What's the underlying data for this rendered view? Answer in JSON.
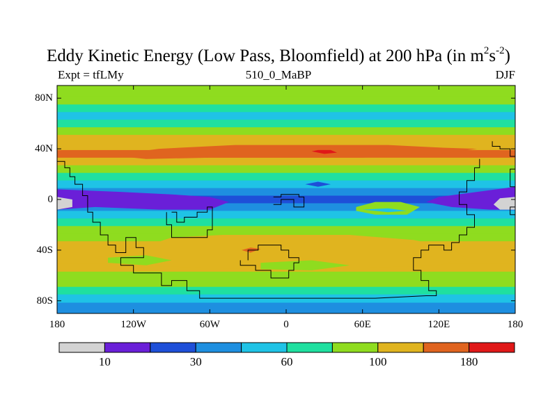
{
  "chart_data": {
    "type": "heatmap",
    "title_main": "Eddy Kinetic Energy (Low Pass, Bloomfield) at 200 hPa (in m",
    "title_sup1": "2",
    "title_s": "s",
    "title_sup2": "-2",
    "title_close": ")",
    "subtitle_left": "Expt = tfLMy",
    "subtitle_center": "510_0_MaBP",
    "subtitle_right": "DJF",
    "x_ticks": [
      "180",
      "120W",
      "60W",
      "0",
      "60E",
      "120E",
      "180"
    ],
    "x_tick_values": [
      -180,
      -120,
      -60,
      0,
      60,
      120,
      180
    ],
    "y_ticks": [
      "80N",
      "40N",
      "0",
      "40S",
      "80S"
    ],
    "y_tick_values": [
      80,
      40,
      0,
      -40,
      -80
    ],
    "xlim": [
      -180,
      180
    ],
    "ylim": [
      -90,
      90
    ],
    "colorbar": {
      "colors": [
        "#d3d3d3",
        "#6a1fd8",
        "#1e4fd8",
        "#1e8fe0",
        "#1fc3e6",
        "#1fe0a0",
        "#8fdc1f",
        "#e0b41f",
        "#e0641f",
        "#e01818"
      ],
      "labels": [
        "10",
        "30",
        "60",
        "100",
        "180"
      ],
      "label_boundaries": [
        1,
        3,
        5,
        7,
        9
      ]
    },
    "bands": [
      {
        "lat": 85,
        "level": 6
      },
      {
        "lat": 78,
        "level": 6
      },
      {
        "lat": 72,
        "level": 5
      },
      {
        "lat": 66,
        "level": 4
      },
      {
        "lat": 60,
        "level": 5
      },
      {
        "lat": 54,
        "level": 6
      },
      {
        "lat": 48,
        "level": 7
      },
      {
        "lat": 42,
        "level": 7
      },
      {
        "lat": 36,
        "level": 8
      },
      {
        "lat": 30,
        "level": 7
      },
      {
        "lat": 24,
        "level": 6
      },
      {
        "lat": 18,
        "level": 5
      },
      {
        "lat": 12,
        "level": 4
      },
      {
        "lat": 6,
        "level": 3
      },
      {
        "lat": 0,
        "level": 2
      },
      {
        "lat": -6,
        "level": 3
      },
      {
        "lat": -12,
        "level": 4
      },
      {
        "lat": -18,
        "level": 5
      },
      {
        "lat": -24,
        "level": 6
      },
      {
        "lat": -30,
        "level": 6
      },
      {
        "lat": -36,
        "level": 7
      },
      {
        "lat": -42,
        "level": 7
      },
      {
        "lat": -48,
        "level": 7
      },
      {
        "lat": -54,
        "level": 7
      },
      {
        "lat": -60,
        "level": 6
      },
      {
        "lat": -66,
        "level": 6
      },
      {
        "lat": -72,
        "level": 5
      },
      {
        "lat": -78,
        "level": 4
      },
      {
        "lat": -85,
        "level": 3
      }
    ],
    "features": [
      {
        "level": 8,
        "poly": [
          [
            -130,
            36
          ],
          [
            -100,
            40
          ],
          [
            -40,
            43
          ],
          [
            20,
            43
          ],
          [
            80,
            43
          ],
          [
            120,
            41
          ],
          [
            150,
            40
          ],
          [
            120,
            36
          ],
          [
            60,
            33
          ],
          [
            0,
            33
          ],
          [
            -60,
            33
          ],
          [
            -110,
            32
          ],
          [
            -130,
            34
          ]
        ]
      },
      {
        "level": 9,
        "poly": [
          [
            20,
            38
          ],
          [
            30,
            36
          ],
          [
            40,
            37
          ],
          [
            35,
            39
          ],
          [
            25,
            39
          ]
        ]
      },
      {
        "level": 1,
        "poly": [
          [
            -180,
            8
          ],
          [
            -130,
            6
          ],
          [
            -90,
            4
          ],
          [
            -60,
            2
          ],
          [
            -45,
            -2
          ],
          [
            -60,
            -8
          ],
          [
            -100,
            -8
          ],
          [
            -150,
            -6
          ],
          [
            -180,
            -8
          ]
        ]
      },
      {
        "level": 1,
        "poly": [
          [
            180,
            10
          ],
          [
            150,
            6
          ],
          [
            120,
            2
          ],
          [
            110,
            -2
          ],
          [
            130,
            -6
          ],
          [
            160,
            -8
          ],
          [
            180,
            -8
          ]
        ]
      },
      {
        "level": 0,
        "poly": [
          [
            -180,
            2
          ],
          [
            -168,
            0
          ],
          [
            -168,
            -6
          ],
          [
            -180,
            -8
          ]
        ]
      },
      {
        "level": 0,
        "poly": [
          [
            180,
            2
          ],
          [
            168,
            1
          ],
          [
            163,
            -4
          ],
          [
            168,
            -8
          ],
          [
            180,
            -8
          ]
        ]
      },
      {
        "level": 2,
        "poly": [
          [
            15,
            12
          ],
          [
            25,
            14
          ],
          [
            35,
            12
          ],
          [
            25,
            10
          ]
        ]
      },
      {
        "level": 6,
        "poly": [
          [
            55,
            -6
          ],
          [
            70,
            -2
          ],
          [
            90,
            -2
          ],
          [
            105,
            -6
          ],
          [
            95,
            -12
          ],
          [
            70,
            -12
          ],
          [
            55,
            -9
          ]
        ]
      },
      {
        "level": 4,
        "poly": [
          [
            60,
            -8
          ],
          [
            80,
            -7
          ],
          [
            95,
            -9
          ],
          [
            80,
            -10
          ]
        ]
      },
      {
        "level": 7,
        "poly": [
          [
            -150,
            -46
          ],
          [
            -120,
            -40
          ],
          [
            -90,
            -30
          ],
          [
            -50,
            -28
          ],
          [
            0,
            -28
          ],
          [
            50,
            -28
          ],
          [
            100,
            -32
          ],
          [
            130,
            -38
          ],
          [
            140,
            -46
          ],
          [
            120,
            -52
          ],
          [
            60,
            -54
          ],
          [
            0,
            -56
          ],
          [
            -60,
            -54
          ],
          [
            -120,
            -52
          ]
        ]
      },
      {
        "level": 8,
        "poly": [
          [
            -35,
            -40
          ],
          [
            -28,
            -38
          ],
          [
            -20,
            -39
          ],
          [
            -28,
            -42
          ]
        ]
      },
      {
        "level": 6,
        "poly": [
          [
            -140,
            -46
          ],
          [
            -110,
            -44
          ],
          [
            -90,
            -48
          ],
          [
            -110,
            -52
          ],
          [
            -140,
            -50
          ]
        ]
      },
      {
        "level": 6,
        "poly": [
          [
            -20,
            -50
          ],
          [
            20,
            -48
          ],
          [
            50,
            -52
          ],
          [
            20,
            -56
          ],
          [
            -20,
            -55
          ]
        ]
      }
    ],
    "outline": [
      [
        [
          -180,
          30
        ],
        [
          -174,
          30
        ],
        [
          -174,
          25
        ],
        [
          -170,
          25
        ],
        [
          -170,
          18
        ],
        [
          -166,
          18
        ],
        [
          -166,
          12
        ],
        [
          -160,
          12
        ],
        [
          -160,
          3
        ],
        [
          -156,
          3
        ],
        [
          -156,
          -10
        ],
        [
          -152,
          -10
        ],
        [
          -152,
          -18
        ],
        [
          -146,
          -18
        ],
        [
          -146,
          -28
        ],
        [
          -140,
          -28
        ],
        [
          -140,
          -36
        ],
        [
          -134,
          -36
        ],
        [
          -134,
          -42
        ],
        [
          -126,
          -42
        ],
        [
          -126,
          -30
        ],
        [
          -118,
          -30
        ],
        [
          -118,
          -38
        ],
        [
          -112,
          -38
        ],
        [
          -112,
          -46
        ],
        [
          -130,
          -46
        ],
        [
          -130,
          -52
        ],
        [
          -120,
          -52
        ],
        [
          -120,
          -58
        ],
        [
          -98,
          -58
        ],
        [
          -98,
          -68
        ],
        [
          -90,
          -68
        ],
        [
          -90,
          -64
        ],
        [
          -78,
          -64
        ],
        [
          -78,
          -72
        ],
        [
          -68,
          -72
        ],
        [
          -68,
          -78
        ],
        [
          -30,
          -78
        ],
        [
          30,
          -78
        ],
        [
          70,
          -78
        ],
        [
          110,
          -76
        ],
        [
          118,
          -76
        ],
        [
          118,
          -72
        ],
        [
          112,
          -72
        ],
        [
          112,
          -64
        ],
        [
          106,
          -64
        ],
        [
          106,
          -56
        ],
        [
          100,
          -56
        ],
        [
          100,
          -46
        ],
        [
          106,
          -46
        ],
        [
          106,
          -40
        ],
        [
          112,
          -40
        ],
        [
          112,
          -36
        ],
        [
          124,
          -36
        ],
        [
          124,
          -40
        ],
        [
          130,
          -40
        ],
        [
          130,
          -34
        ],
        [
          136,
          -34
        ],
        [
          136,
          -28
        ],
        [
          142,
          -28
        ],
        [
          142,
          -22
        ],
        [
          148,
          -22
        ],
        [
          148,
          -12
        ],
        [
          142,
          -12
        ],
        [
          142,
          -4
        ],
        [
          136,
          -4
        ],
        [
          136,
          6
        ],
        [
          142,
          6
        ],
        [
          142,
          15
        ],
        [
          148,
          15
        ],
        [
          148,
          25
        ],
        [
          152,
          25
        ],
        [
          152,
          32
        ]
      ],
      [
        [
          162,
          46
        ],
        [
          162,
          42
        ],
        [
          168,
          42
        ],
        [
          168,
          40
        ],
        [
          176,
          40
        ],
        [
          176,
          34
        ],
        [
          180,
          34
        ]
      ],
      [
        [
          180,
          24
        ],
        [
          176,
          24
        ],
        [
          176,
          10
        ],
        [
          180,
          10
        ]
      ],
      [
        [
          180,
          -6
        ],
        [
          176,
          -6
        ],
        [
          176,
          -12
        ],
        [
          180,
          -12
        ]
      ],
      [
        [
          -90,
          -10
        ],
        [
          -86,
          -10
        ],
        [
          -86,
          -18
        ],
        [
          -80,
          -18
        ],
        [
          -80,
          -14
        ],
        [
          -70,
          -14
        ],
        [
          -70,
          -10
        ],
        [
          -62,
          -10
        ],
        [
          -62,
          -6
        ],
        [
          -58,
          -6
        ],
        [
          -58,
          -24
        ],
        [
          -62,
          -24
        ],
        [
          -62,
          -30
        ],
        [
          -90,
          -30
        ],
        [
          -90,
          -20
        ],
        [
          -94,
          -20
        ],
        [
          -94,
          -10
        ]
      ],
      [
        [
          -10,
          -4
        ],
        [
          -4,
          -4
        ],
        [
          -4,
          0
        ],
        [
          6,
          0
        ],
        [
          6,
          -6
        ],
        [
          14,
          -6
        ],
        [
          14,
          2
        ],
        [
          10,
          2
        ],
        [
          10,
          4
        ],
        [
          -4,
          4
        ],
        [
          -4,
          2
        ],
        [
          -10,
          2
        ]
      ],
      [
        [
          -36,
          -48
        ],
        [
          -36,
          -52
        ],
        [
          -24,
          -52
        ],
        [
          -24,
          -56
        ],
        [
          -12,
          -56
        ],
        [
          -12,
          -62
        ],
        [
          2,
          -62
        ],
        [
          2,
          -56
        ],
        [
          6,
          -56
        ],
        [
          6,
          -50
        ],
        [
          10,
          -50
        ],
        [
          10,
          -46
        ],
        [
          2,
          -46
        ],
        [
          2,
          -40
        ],
        [
          -4,
          -40
        ],
        [
          -4,
          -36
        ],
        [
          -22,
          -36
        ],
        [
          -22,
          -40
        ],
        [
          -30,
          -40
        ],
        [
          -30,
          -48
        ]
      ]
    ]
  }
}
